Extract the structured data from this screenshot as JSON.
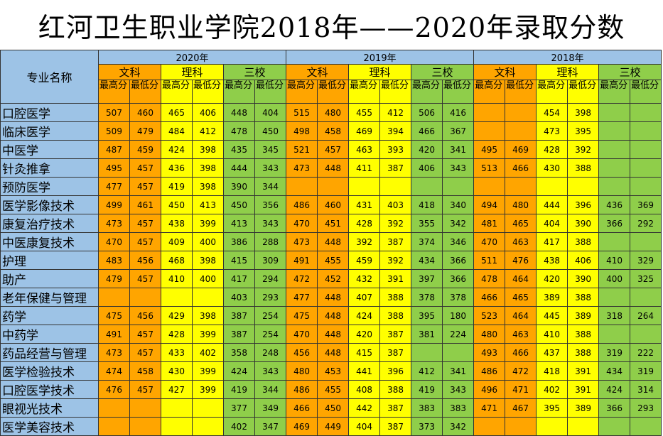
{
  "title": "红河卫生职业学院2018年——2020年录取分数",
  "header": {
    "major_label": "专业名称",
    "years": [
      "2020年",
      "2019年",
      "2018年"
    ],
    "groups": [
      "文科",
      "理科",
      "三校"
    ],
    "max_label": "最高分",
    "min_label": "最低分"
  },
  "colors": {
    "blue": "#9dc3e6",
    "orange": "#ffa500",
    "yellow": "#ffff00",
    "green": "#8fce4a"
  },
  "rows": [
    {
      "name": "口腔医学",
      "v": [
        "507",
        "460",
        "465",
        "406",
        "448",
        "404",
        "515",
        "480",
        "455",
        "412",
        "506",
        "416",
        "",
        "",
        "454",
        "398",
        "",
        ""
      ]
    },
    {
      "name": "临床医学",
      "v": [
        "509",
        "479",
        "484",
        "412",
        "478",
        "450",
        "498",
        "458",
        "469",
        "394",
        "466",
        "367",
        "",
        "",
        "473",
        "395",
        "",
        ""
      ]
    },
    {
      "name": "中医学",
      "v": [
        "487",
        "459",
        "424",
        "398",
        "435",
        "345",
        "521",
        "457",
        "463",
        "393",
        "420",
        "341",
        "495",
        "469",
        "428",
        "392",
        "",
        ""
      ]
    },
    {
      "name": "针灸推拿",
      "v": [
        "495",
        "457",
        "436",
        "398",
        "444",
        "343",
        "473",
        "448",
        "411",
        "387",
        "406",
        "343",
        "513",
        "466",
        "430",
        "388",
        "",
        ""
      ]
    },
    {
      "name": "预防医学",
      "v": [
        "477",
        "457",
        "419",
        "398",
        "390",
        "344",
        "",
        "",
        "",
        "",
        "",
        "",
        "",
        "",
        "",
        "",
        "",
        ""
      ]
    },
    {
      "name": "医学影像技术",
      "v": [
        "499",
        "461",
        "450",
        "413",
        "450",
        "356",
        "486",
        "460",
        "431",
        "403",
        "418",
        "340",
        "494",
        "480",
        "444",
        "396",
        "436",
        "369"
      ]
    },
    {
      "name": "康复治疗技术",
      "v": [
        "473",
        "457",
        "438",
        "399",
        "413",
        "343",
        "470",
        "451",
        "428",
        "392",
        "355",
        "342",
        "481",
        "465",
        "404",
        "390",
        "366",
        "292"
      ]
    },
    {
      "name": "中医康复技术",
      "v": [
        "470",
        "457",
        "409",
        "400",
        "386",
        "288",
        "473",
        "448",
        "392",
        "387",
        "374",
        "346",
        "470",
        "463",
        "417",
        "388",
        "",
        ""
      ]
    },
    {
      "name": "护理",
      "v": [
        "483",
        "456",
        "468",
        "398",
        "415",
        "309",
        "491",
        "455",
        "459",
        "392",
        "434",
        "366",
        "511",
        "476",
        "438",
        "406",
        "410",
        "329"
      ]
    },
    {
      "name": "助产",
      "v": [
        "479",
        "457",
        "410",
        "400",
        "417",
        "294",
        "472",
        "452",
        "432",
        "391",
        "397",
        "366",
        "478",
        "464",
        "420",
        "390",
        "400",
        "325"
      ]
    },
    {
      "name": "老年保健与管理",
      "v": [
        "",
        "",
        "",
        "",
        "403",
        "293",
        "477",
        "448",
        "407",
        "388",
        "378",
        "378",
        "466",
        "465",
        "389",
        "388",
        "",
        ""
      ]
    },
    {
      "name": "药学",
      "v": [
        "475",
        "456",
        "429",
        "398",
        "387",
        "254",
        "475",
        "448",
        "424",
        "388",
        "395",
        "180",
        "523",
        "464",
        "445",
        "389",
        "318",
        "264"
      ]
    },
    {
      "name": "中药学",
      "v": [
        "491",
        "457",
        "428",
        "399",
        "387",
        "254",
        "470",
        "448",
        "420",
        "387",
        "381",
        "224",
        "480",
        "463",
        "410",
        "388",
        "",
        ""
      ]
    },
    {
      "name": "药品经营与管理",
      "v": [
        "473",
        "457",
        "433",
        "402",
        "358",
        "248",
        "456",
        "448",
        "415",
        "387",
        "",
        "",
        "493",
        "466",
        "437",
        "388",
        "319",
        "222"
      ]
    },
    {
      "name": "医学检验技术",
      "v": [
        "474",
        "458",
        "430",
        "399",
        "424",
        "343",
        "480",
        "453",
        "441",
        "396",
        "412",
        "341",
        "486",
        "472",
        "418",
        "391",
        "434",
        "319"
      ]
    },
    {
      "name": "口腔医学技术",
      "v": [
        "476",
        "457",
        "427",
        "399",
        "419",
        "344",
        "486",
        "455",
        "408",
        "388",
        "419",
        "343",
        "496",
        "471",
        "402",
        "391",
        "424",
        "314"
      ]
    },
    {
      "name": "眼视光技术",
      "v": [
        "",
        "",
        "",
        "",
        "377",
        "349",
        "466",
        "450",
        "442",
        "387",
        "383",
        "383",
        "471",
        "467",
        "395",
        "389",
        "366",
        "293"
      ]
    },
    {
      "name": "医学美容技术",
      "v": [
        "",
        "",
        "",
        "",
        "402",
        "347",
        "469",
        "449",
        "404",
        "387",
        "373",
        "342",
        "",
        "",
        "",
        "",
        "",
        ""
      ]
    }
  ]
}
